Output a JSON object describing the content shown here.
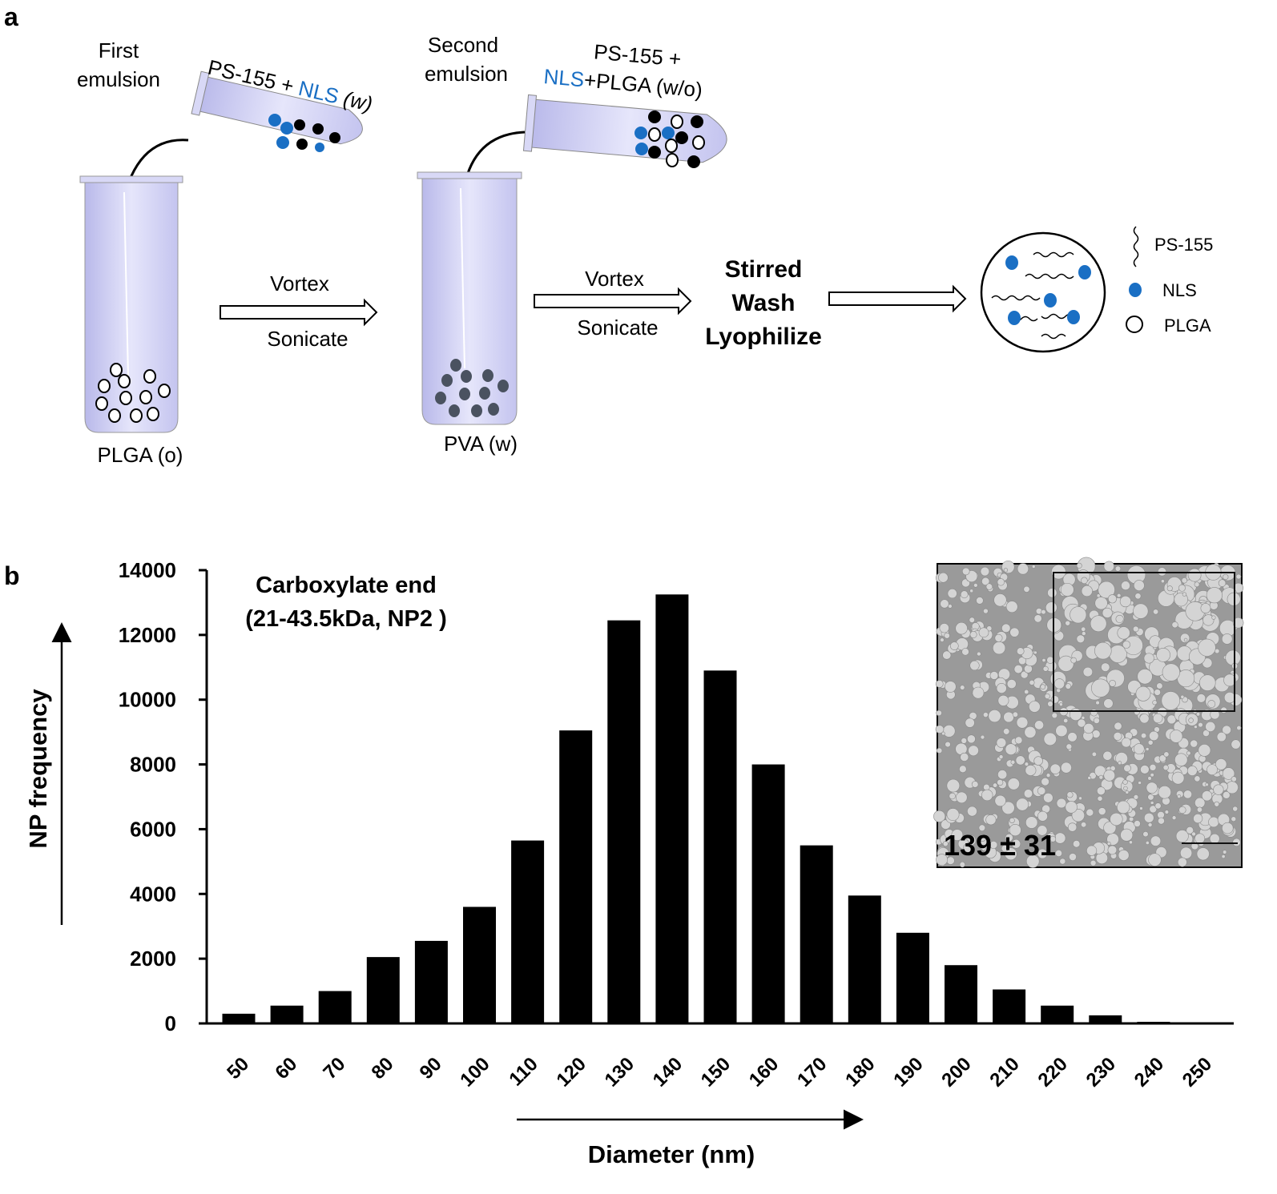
{
  "diagram": {
    "panel_label": "a",
    "first_emulsion": [
      "First",
      "emulsion"
    ],
    "tube1_label": [
      "PS-155 +",
      "NLS",
      "(w)"
    ],
    "beaker1_label": "PLGA (o)",
    "arrow1": [
      "Vortex",
      "Sonicate"
    ],
    "second_emulsion": [
      "Second",
      "emulsion"
    ],
    "tube2_label": [
      "PS-155 +",
      "NLS",
      "+PLGA (w/o)"
    ],
    "beaker2_label": "PVA (w)",
    "arrow2": [
      "Vortex",
      "Sonicate"
    ],
    "process": [
      "Stirred",
      "Wash",
      "Lyophilize"
    ],
    "legend": [
      "PS-155",
      "NLS",
      "PLGA"
    ]
  },
  "chart_data": {
    "type": "bar",
    "panel_label": "b",
    "annotations": [
      "Carboxylate end",
      "(21-43.5kDa, NP2 )"
    ],
    "inset_label": "139 ± 31",
    "ylabel": "NP frequency",
    "xlabel": "Diameter (nm)",
    "categories": [
      "50",
      "60",
      "70",
      "80",
      "90",
      "100",
      "110",
      "120",
      "130",
      "140",
      "150",
      "160",
      "170",
      "180",
      "190",
      "200",
      "210",
      "220",
      "230",
      "240",
      "250"
    ],
    "values": [
      300,
      550,
      1000,
      2050,
      2550,
      3600,
      5650,
      9050,
      12450,
      13250,
      10900,
      8000,
      5500,
      3950,
      2800,
      1800,
      1050,
      550,
      250,
      50,
      30
    ],
    "color": "#000000",
    "ylim": [
      0,
      14000
    ],
    "yticks": [
      0,
      2000,
      4000,
      6000,
      8000,
      10000,
      12000,
      14000
    ],
    "grid": false
  }
}
